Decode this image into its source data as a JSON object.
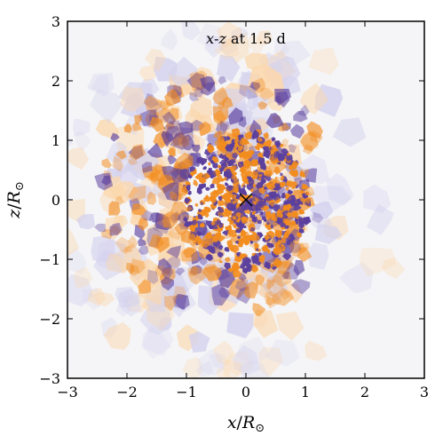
{
  "chart_data": {
    "type": "heatmap",
    "title": "x-z at 1.5 d",
    "title_parts": {
      "var1": "x",
      "sep": "-",
      "var2": "z",
      "rest": " at 1.5 d"
    },
    "xlabel": "x/R⊙",
    "ylabel": "z/R⊙",
    "xlabel_parts": {
      "var": "x",
      "sep": "/",
      "unit": "R",
      "sub": "⊙"
    },
    "ylabel_parts": {
      "var": "z",
      "sep": "/",
      "unit": "R",
      "sub": "⊙"
    },
    "xlim": [
      -3,
      3
    ],
    "ylim": [
      -3,
      3
    ],
    "x_ticks": [
      -3,
      -2,
      -1,
      0,
      1,
      2,
      3
    ],
    "y_ticks": [
      -3,
      -2,
      -1,
      0,
      1,
      2,
      3
    ],
    "x_tick_labels": [
      "−3",
      "−2",
      "−1",
      "0",
      "1",
      "2",
      "3"
    ],
    "y_tick_labels": [
      "−3",
      "−2",
      "−1",
      "0",
      "1",
      "2",
      "3"
    ],
    "grid": false,
    "marker": {
      "symbol": "x",
      "x": 0,
      "y": 0
    },
    "colors": {
      "background": "#f5f5f7",
      "positive": "#f28c1e",
      "negative": "#5a3f9e",
      "positive_light": "#fbd7ac",
      "negative_light": "#d4d2ee"
    }
  }
}
